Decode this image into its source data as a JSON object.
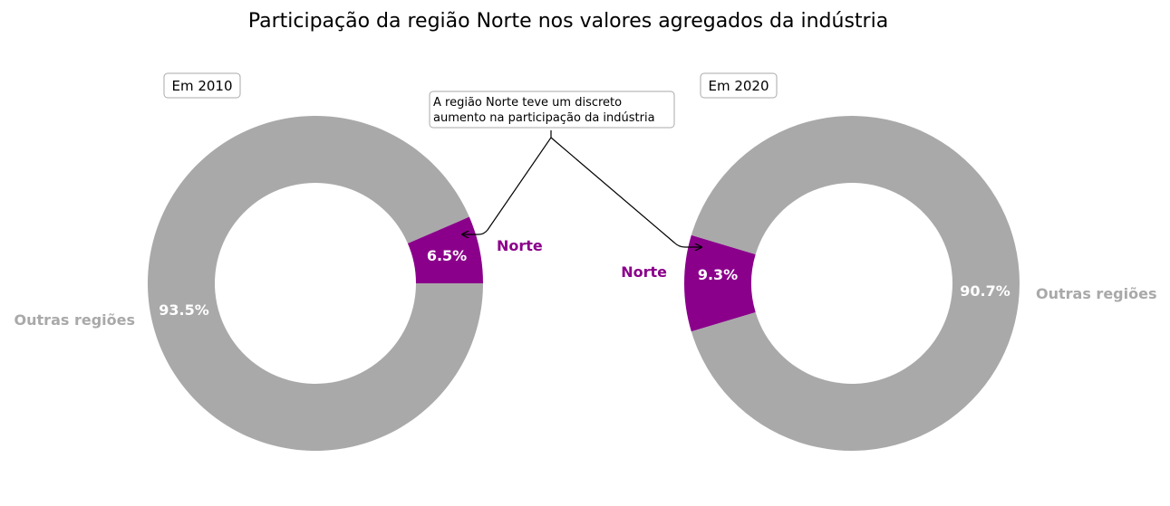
{
  "chart_data": {
    "title": "Participação da região Norte nos valores agregados da indústria",
    "type": "pie",
    "charts": [
      {
        "label": "Em 2010",
        "slices": [
          {
            "name": "Norte",
            "value": 6.5,
            "label": "6.5%",
            "color": "#8B008B"
          },
          {
            "name": "Outras regiões",
            "value": 93.5,
            "label": "93.5%",
            "color": "#A9A9A9"
          }
        ]
      },
      {
        "label": "Em 2020",
        "slices": [
          {
            "name": "Norte",
            "value": 9.3,
            "label": "9.3%",
            "color": "#8B008B"
          },
          {
            "name": "Outras regiões",
            "value": 90.7,
            "label": "90.7%",
            "color": "#A9A9A9"
          }
        ]
      }
    ],
    "annotation": {
      "lines": [
        "A região Norte teve um discreto",
        "aumento na participação da indústria"
      ]
    }
  }
}
